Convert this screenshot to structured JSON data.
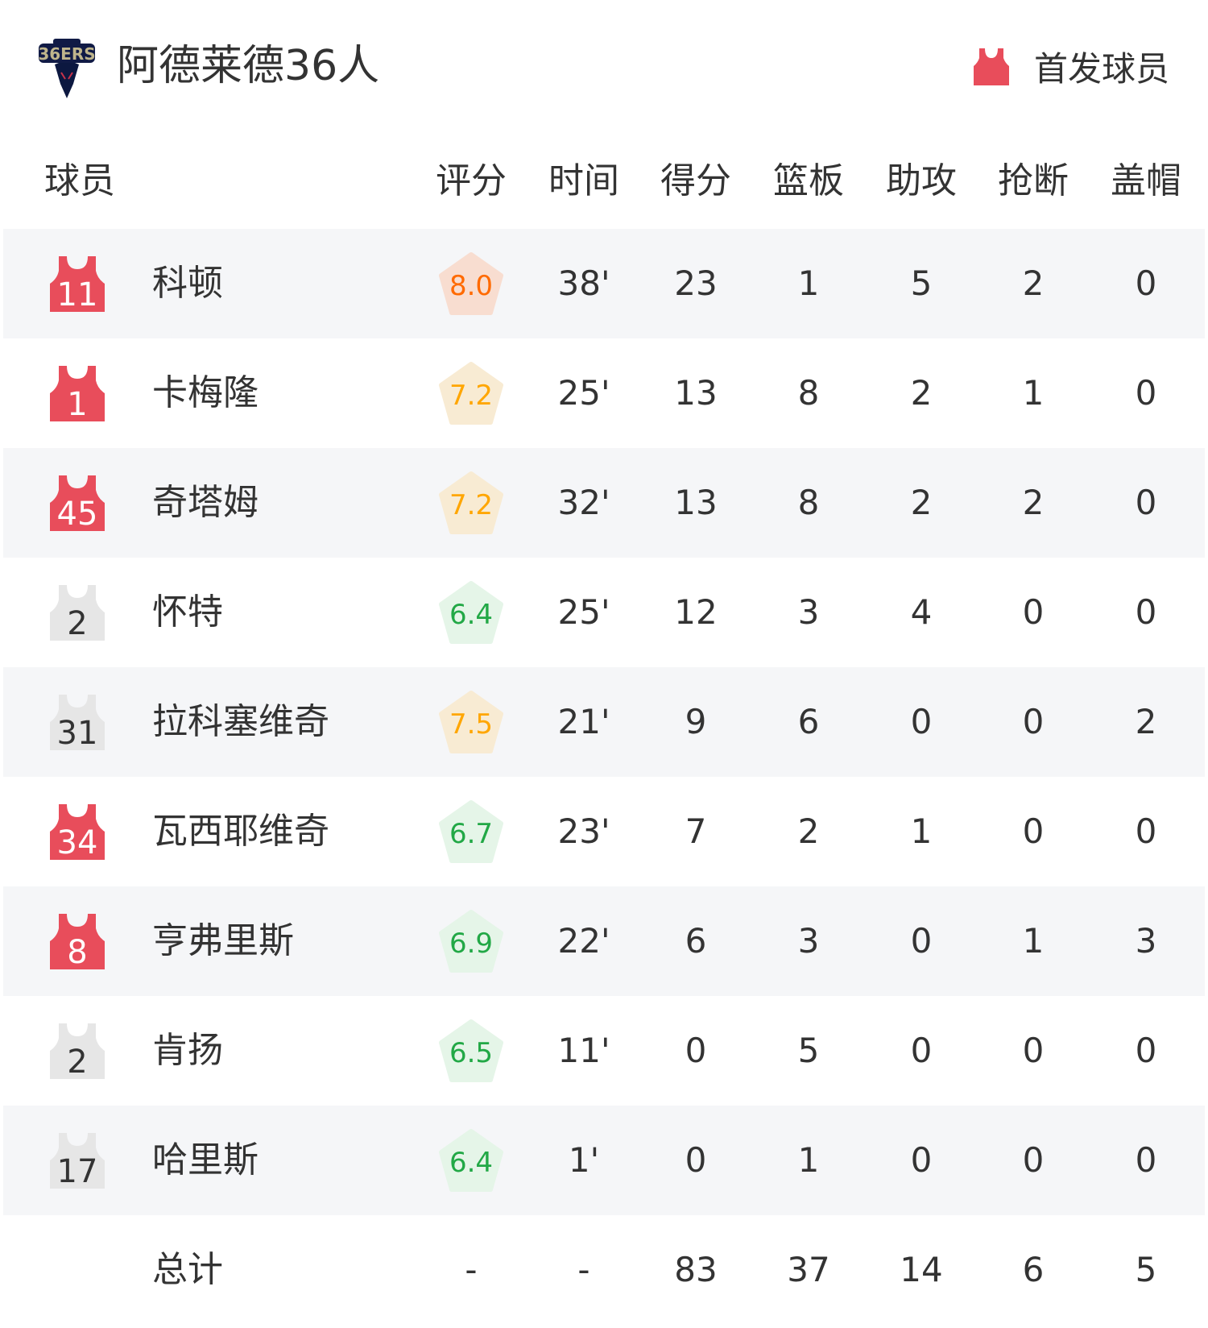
{
  "header": {
    "team_name": "阿德莱德36人",
    "logo_text": "ADELAIDE 36ERS",
    "legend_label": "首发球员",
    "starter_color": "#e84d5b",
    "bench_color": "#e6e6e6"
  },
  "columns": [
    "球员",
    "评分",
    "时间",
    "得分",
    "篮板",
    "助攻",
    "抢断",
    "盖帽"
  ],
  "players": [
    {
      "number": "11",
      "starter": true,
      "name": "科顿",
      "rating": "8.0",
      "tier": "high",
      "time": "38'",
      "pts": "23",
      "reb": "1",
      "ast": "5",
      "stl": "2",
      "blk": "0"
    },
    {
      "number": "1",
      "starter": true,
      "name": "卡梅隆",
      "rating": "7.2",
      "tier": "mid",
      "time": "25'",
      "pts": "13",
      "reb": "8",
      "ast": "2",
      "stl": "1",
      "blk": "0"
    },
    {
      "number": "45",
      "starter": true,
      "name": "奇塔姆",
      "rating": "7.2",
      "tier": "mid",
      "time": "32'",
      "pts": "13",
      "reb": "8",
      "ast": "2",
      "stl": "2",
      "blk": "0"
    },
    {
      "number": "2",
      "starter": false,
      "name": "怀特",
      "rating": "6.4",
      "tier": "low",
      "time": "25'",
      "pts": "12",
      "reb": "3",
      "ast": "4",
      "stl": "0",
      "blk": "0"
    },
    {
      "number": "31",
      "starter": false,
      "name": "拉科塞维奇",
      "rating": "7.5",
      "tier": "mid",
      "time": "21'",
      "pts": "9",
      "reb": "6",
      "ast": "0",
      "stl": "0",
      "blk": "2"
    },
    {
      "number": "34",
      "starter": true,
      "name": "瓦西耶维奇",
      "rating": "6.7",
      "tier": "low",
      "time": "23'",
      "pts": "7",
      "reb": "2",
      "ast": "1",
      "stl": "0",
      "blk": "0"
    },
    {
      "number": "8",
      "starter": true,
      "name": "亨弗里斯",
      "rating": "6.9",
      "tier": "low",
      "time": "22'",
      "pts": "6",
      "reb": "3",
      "ast": "0",
      "stl": "1",
      "blk": "3"
    },
    {
      "number": "2",
      "starter": false,
      "name": "肯扬",
      "rating": "6.5",
      "tier": "low",
      "time": "11'",
      "pts": "0",
      "reb": "5",
      "ast": "0",
      "stl": "0",
      "blk": "0"
    },
    {
      "number": "17",
      "starter": false,
      "name": "哈里斯",
      "rating": "6.4",
      "tier": "low",
      "time": "1'",
      "pts": "0",
      "reb": "1",
      "ast": "0",
      "stl": "0",
      "blk": "0"
    }
  ],
  "totals": {
    "label": "总计",
    "rating": "-",
    "time": "-",
    "pts": "83",
    "reb": "37",
    "ast": "14",
    "stl": "6",
    "blk": "5"
  },
  "rating_colors": {
    "high": {
      "text": "#ff6a00",
      "bg": "#f8ddd0"
    },
    "mid": {
      "text": "#ffa600",
      "bg": "#f8ebd3"
    },
    "low": {
      "text": "#22a846",
      "bg": "#e5f5e8"
    }
  }
}
